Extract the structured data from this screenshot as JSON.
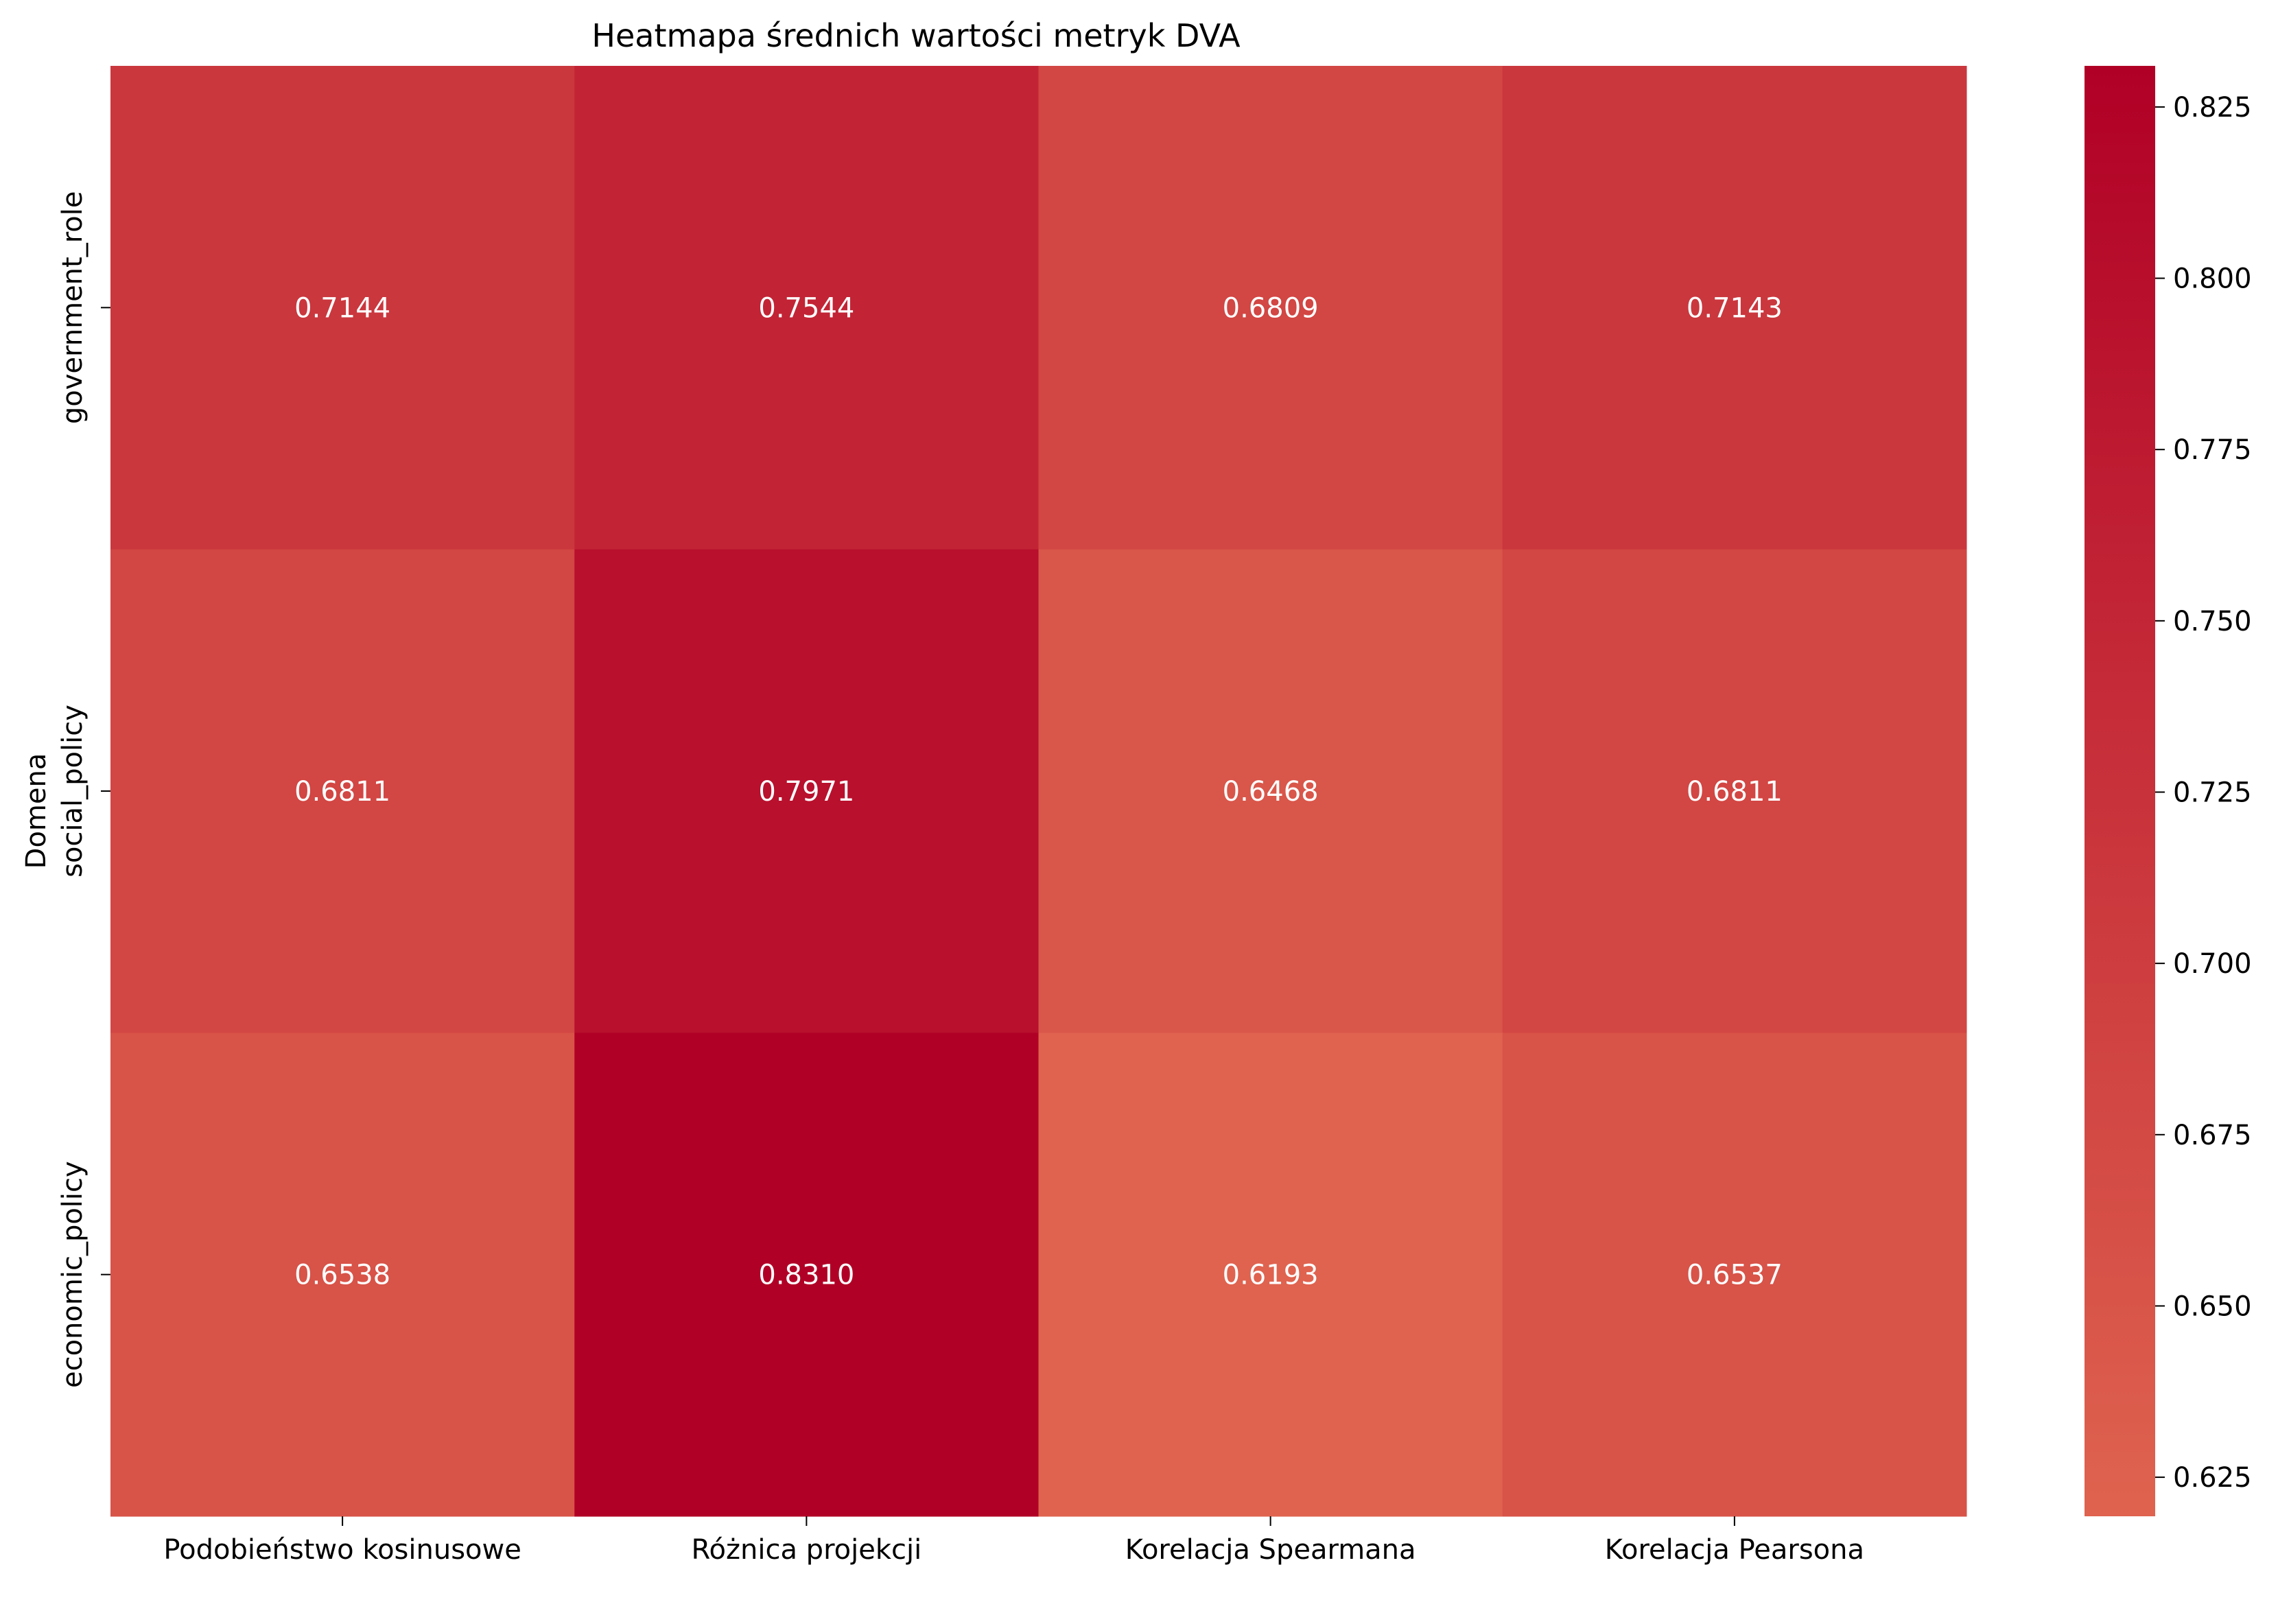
{
  "chart_data": {
    "type": "heatmap",
    "title": "Heatmapa średnich wartości metryk DVA",
    "ylabel": "Domena",
    "xlabel": "",
    "x_categories": [
      "Podobieństwo kosinusowe",
      "Różnica projekcji",
      "Korelacja Spearmana",
      "Korelacja Pearsona"
    ],
    "y_categories": [
      "government_role",
      "social_policy",
      "economic_policy"
    ],
    "values": [
      [
        0.7144,
        0.7544,
        0.6809,
        0.7143
      ],
      [
        0.6811,
        0.7971,
        0.6468,
        0.6811
      ],
      [
        0.6538,
        0.831,
        0.6193,
        0.6537
      ]
    ],
    "value_labels": [
      [
        "0.7144",
        "0.7544",
        "0.6809",
        "0.7143"
      ],
      [
        "0.6811",
        "0.7971",
        "0.6468",
        "0.6811"
      ],
      [
        "0.6538",
        "0.8310",
        "0.6193",
        "0.6537"
      ]
    ],
    "colorbar": {
      "range": [
        0.6193,
        0.831
      ],
      "ticks": [
        0.625,
        0.65,
        0.675,
        0.7,
        0.725,
        0.75,
        0.775,
        0.8,
        0.825
      ],
      "tick_labels": [
        "0.625",
        "0.650",
        "0.675",
        "0.700",
        "0.725",
        "0.750",
        "0.775",
        "0.800",
        "0.825"
      ],
      "color_low": "#df634f",
      "color_high": "#b10026"
    }
  }
}
